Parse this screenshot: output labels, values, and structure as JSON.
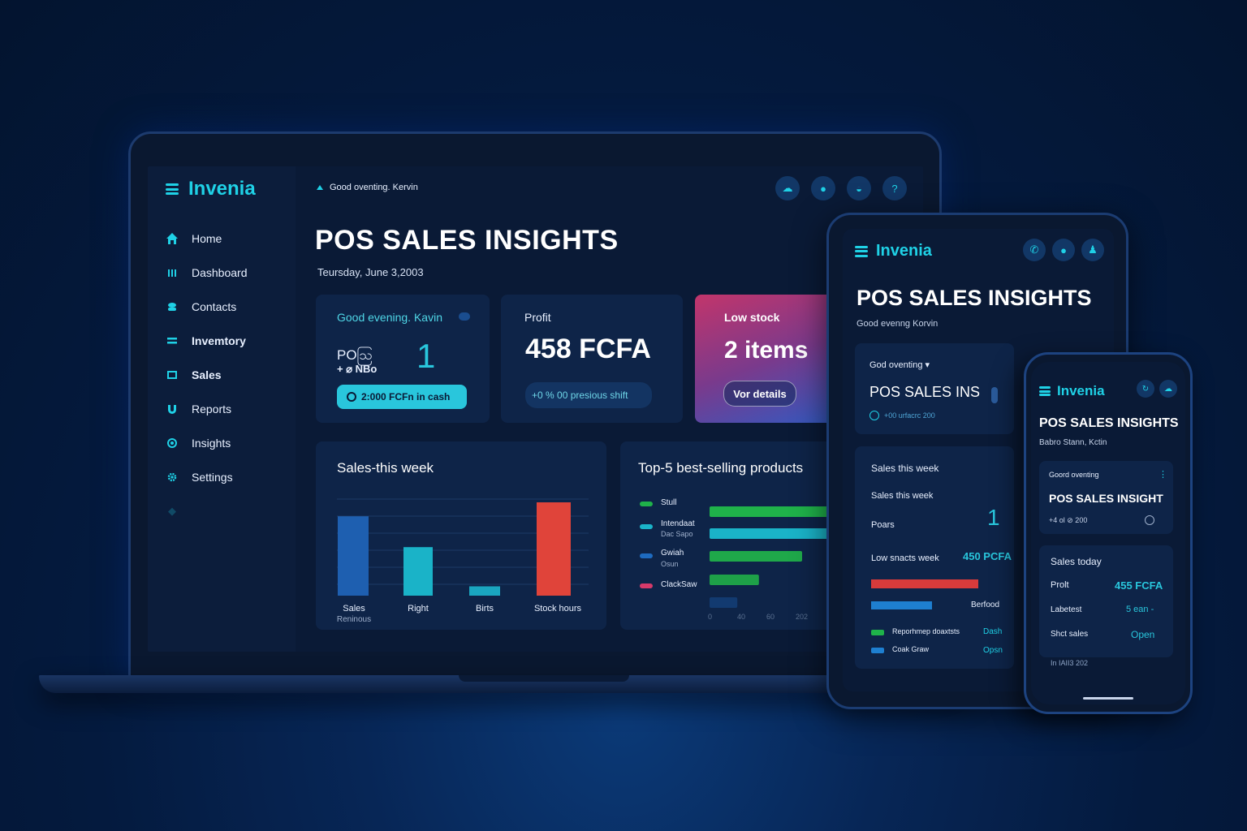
{
  "app": {
    "name": "Invenia"
  },
  "laptop": {
    "greeting": "Good oventing. Kervin",
    "title": "POS SALES INSIGHTS",
    "date": "Teursday, June 3,2003",
    "nav": [
      {
        "label": "Home",
        "icon": "home-icon"
      },
      {
        "label": "Dashboard",
        "icon": "bars-icon"
      },
      {
        "label": "Contacts",
        "icon": "contacts-icon"
      },
      {
        "label": "Invemtory",
        "icon": "inventory-icon"
      },
      {
        "label": "Sales",
        "icon": "sales-icon"
      },
      {
        "label": "Reports",
        "icon": "reports-icon"
      },
      {
        "label": "Insights",
        "icon": "insights-icon"
      },
      {
        "label": "Settings",
        "icon": "gear-icon"
      }
    ],
    "greet_card": {
      "title": "Good evening. Kavin",
      "label1": "POဩ",
      "label2": "+ ⌀ NBo",
      "value": "1",
      "badge": "2:000 FCFn in cash"
    },
    "profit_card": {
      "title": "Profit",
      "value": "458 FCFA",
      "pill": "+0 % 00 presious shift"
    },
    "low_card": {
      "title": "Low stock",
      "value": "2 items",
      "button": "Vor details"
    },
    "sales_week": {
      "title": "Sales-this week",
      "labels": [
        "Sales",
        "Right",
        "Birts",
        "Stock hours"
      ],
      "sublabels": [
        "Reninous",
        "",
        "",
        ""
      ]
    },
    "top5": {
      "title": "Top-5 best-selling products",
      "legend": [
        {
          "label": "Stull",
          "sub": ""
        },
        {
          "label": "Intendaat",
          "sub": "Dac Sapo"
        },
        {
          "label": "Gwiah",
          "sub": "Osun"
        },
        {
          "label": "ClackSaw",
          "sub": ""
        }
      ],
      "axis": [
        "0",
        "40",
        "60",
        "202"
      ]
    }
  },
  "tablet": {
    "title": "POS SALES INSIGHTS",
    "subtitle": "Good evenng Korvin",
    "card1": {
      "title": "God oventing",
      "heading": "POS SALES INS",
      "sub": "+00 urfacrc 200"
    },
    "card2": {
      "title": "Sales this week",
      "line2": "Sales this week",
      "poars": "Poars",
      "poars_value": "1",
      "low": "Low snacts week",
      "low_value": "450 PCFA",
      "berfood": "Berfood",
      "legend1": "Reporhmep doaxtsts",
      "legend1_link": "Dash",
      "legend2": "Coak Graw",
      "legend2_link": "Opsn"
    }
  },
  "phone": {
    "title": "POS SALES INSIGHTS",
    "subtitle": "Babro Stann, Kctin",
    "card1": {
      "title": "Goord oventing",
      "heading": "POS SALES INSIGHT",
      "sub": "+4 ol ⊘ 200"
    },
    "card2": {
      "title": "Sales today",
      "r1_label": "Prolt",
      "r1_value": "455 FCFA",
      "r2_label": "Labetest",
      "r2_value": "5 ean -",
      "r3_label": "Shct sales",
      "r3_value": "Open",
      "foot": "In IAII3 202"
    }
  },
  "chart_data": [
    {
      "type": "bar",
      "title": "Sales-this week",
      "categories": [
        "Sales",
        "Right",
        "Birts",
        "Stock hours"
      ],
      "values": [
        85,
        52,
        10,
        100
      ],
      "colors": [
        "#1e5fb0",
        "#1ab3c8",
        "#1aa6c0",
        "#e0443a"
      ]
    },
    {
      "type": "bar",
      "orientation": "horizontal",
      "title": "Top-5 best-selling products",
      "values": [
        100,
        80,
        60,
        32,
        18
      ],
      "colors": [
        "#1fb24a",
        "#1ab3c8",
        "#1fa84a",
        "#1ea048",
        "#123a70"
      ]
    }
  ],
  "colors": {
    "accent": "#1fd1e6",
    "bg": "#0a1a36",
    "card": "#0e2448"
  }
}
